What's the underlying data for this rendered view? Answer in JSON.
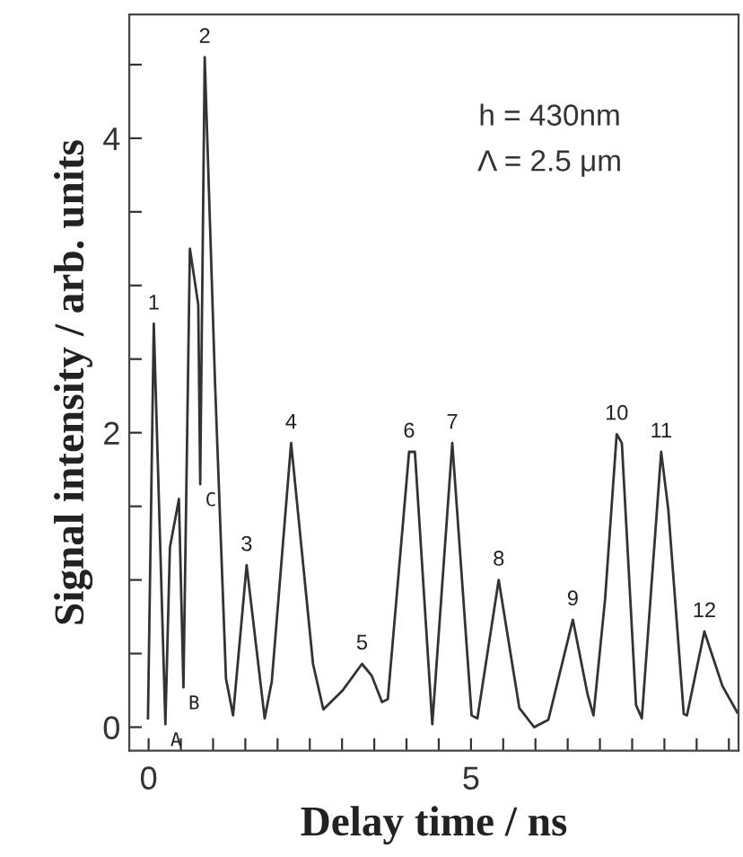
{
  "chart_data": {
    "type": "line",
    "xlabel": "Delay time / ns",
    "ylabel": "Signal intensity / arb. units",
    "series": [
      {
        "color": "#333333",
        "x": [
          -0.01,
          0.08,
          0.26,
          0.33,
          0.47,
          0.54,
          0.64,
          0.77,
          0.8,
          0.87,
          1.03,
          1.2,
          1.31,
          1.52,
          1.8,
          1.91,
          2.21,
          2.55,
          2.71,
          3.01,
          3.31,
          3.46,
          3.62,
          3.71,
          4.04,
          4.13,
          4.4,
          4.71,
          5.01,
          5.1,
          5.43,
          5.75,
          5.98,
          6.2,
          6.58,
          6.81,
          6.9,
          7.08,
          7.26,
          7.34,
          7.56,
          7.65,
          7.95,
          8.06,
          8.3,
          8.35,
          8.62,
          8.9,
          9.13
        ],
        "values": [
          0.06,
          2.74,
          0.02,
          1.22,
          1.55,
          0.27,
          3.25,
          2.87,
          1.65,
          4.55,
          2.34,
          0.33,
          0.08,
          1.1,
          0.06,
          0.31,
          1.93,
          0.43,
          0.12,
          0.25,
          0.43,
          0.35,
          0.17,
          0.19,
          1.87,
          1.87,
          0.02,
          1.93,
          0.08,
          0.06,
          1.0,
          0.13,
          0.0,
          0.05,
          0.73,
          0.22,
          0.08,
          0.87,
          1.99,
          1.93,
          0.15,
          0.06,
          1.87,
          1.48,
          0.09,
          0.08,
          0.65,
          0.28,
          0.1
        ]
      }
    ],
    "xlim": [
      -0.3,
      9.15
    ],
    "ylim": [
      -0.16,
      4.84
    ],
    "xticks": [
      0,
      {
        "value": 0.5,
        "label": null
      },
      {
        "value": 1,
        "label": null
      },
      {
        "value": 1.5,
        "label": null
      },
      {
        "value": 2,
        "label": null
      },
      {
        "value": 2.5,
        "label": null
      },
      {
        "value": 3,
        "label": null
      },
      {
        "value": 3.5,
        "label": null
      },
      {
        "value": 4,
        "label": null
      },
      {
        "value": 4.5,
        "label": null
      },
      5,
      {
        "value": 5.5,
        "label": null
      },
      {
        "value": 6,
        "label": null
      },
      {
        "value": 6.5,
        "label": null
      },
      {
        "value": 7,
        "label": null
      },
      {
        "value": 7.5,
        "label": null
      },
      {
        "value": 8,
        "label": null
      },
      {
        "value": 8.5,
        "label": null
      },
      {
        "value": 9,
        "label": null
      }
    ],
    "yticks": [
      0,
      {
        "value": 0.5,
        "label": null
      },
      {
        "value": 1,
        "label": null
      },
      {
        "value": 1.5,
        "label": null
      },
      2,
      {
        "value": 2.5,
        "label": null
      },
      {
        "value": 3,
        "label": null
      },
      {
        "value": 3.5,
        "label": null
      },
      4,
      {
        "value": 4.5,
        "label": null
      }
    ],
    "grid": false,
    "legend": false,
    "marker": "none",
    "line_style": "solid",
    "annotations": [
      {
        "text": "1",
        "x": 0.08,
        "y": 2.74
      },
      {
        "text": "2",
        "x": 0.87,
        "y": 4.55
      },
      {
        "text": "3",
        "x": 1.52,
        "y": 1.1
      },
      {
        "text": "4",
        "x": 2.21,
        "y": 1.93
      },
      {
        "text": "5",
        "x": 3.31,
        "y": 0.43
      },
      {
        "text": "6",
        "x": 4.04,
        "y": 1.87
      },
      {
        "text": "7",
        "x": 4.71,
        "y": 1.93
      },
      {
        "text": "8",
        "x": 5.43,
        "y": 1.0
      },
      {
        "text": "9",
        "x": 6.58,
        "y": 0.73
      },
      {
        "text": "10",
        "x": 7.26,
        "y": 1.99
      },
      {
        "text": "11",
        "x": 7.95,
        "y": 1.87
      },
      {
        "text": "12",
        "x": 8.62,
        "y": 0.65
      },
      {
        "text": "A",
        "x": 0.26,
        "y": 0.02
      },
      {
        "text": "B",
        "x": 0.54,
        "y": 0.27
      },
      {
        "text": "C",
        "x": 0.8,
        "y": 1.65
      },
      "h = 430nm",
      "Λ = 2.5 μm"
    ]
  }
}
